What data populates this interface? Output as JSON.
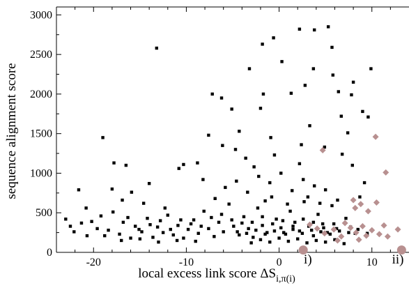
{
  "chart_data": {
    "type": "scatter",
    "xlabel_text": "local excess link score ΔS",
    "xlabel_sub": "i,π(i)",
    "ylabel": "sequence alignment score",
    "xlim": [
      -24,
      14
    ],
    "ylim": [
      0,
      3100
    ],
    "x_ticks": [
      -20,
      -10,
      0,
      10
    ],
    "x_tick_labels": [
      "-20",
      "-10",
      "0",
      "10"
    ],
    "y_ticks": [
      0,
      500,
      1000,
      1500,
      2000,
      2500,
      3000
    ],
    "y_tick_labels": [
      "0",
      "500",
      "1000",
      "1500",
      "2000",
      "2500",
      "3000"
    ],
    "grid": false,
    "colors": {
      "black_series": "#000000",
      "highlight": "#b89090"
    },
    "series": [
      {
        "marker": "square",
        "color": "#000000",
        "points": [
          [
            -13.2,
            2580
          ],
          [
            -7.2,
            2000
          ],
          [
            -6.2,
            1950
          ],
          [
            -5.1,
            1810
          ],
          [
            -3.2,
            2320
          ],
          [
            -2.0,
            1820
          ],
          [
            -1.8,
            2630
          ],
          [
            -1.7,
            2000
          ],
          [
            -0.6,
            2710
          ],
          [
            0.3,
            2410
          ],
          [
            2.2,
            2820
          ],
          [
            3.8,
            2810
          ],
          [
            5.3,
            2850
          ],
          [
            1.3,
            2010
          ],
          [
            2.8,
            2110
          ],
          [
            3.7,
            2320
          ],
          [
            6.4,
            2030
          ],
          [
            8.0,
            2150
          ],
          [
            9.9,
            2320
          ],
          [
            5.7,
            2590
          ],
          [
            6.7,
            1720
          ],
          [
            7.8,
            1990
          ],
          [
            9.0,
            1780
          ],
          [
            9.6,
            1710
          ],
          [
            5.8,
            2240
          ],
          [
            -19.0,
            1450
          ],
          [
            -17.8,
            1130
          ],
          [
            -6.1,
            1350
          ],
          [
            -4.3,
            1530
          ],
          [
            -0.9,
            1450
          ],
          [
            2.4,
            1360
          ],
          [
            3.3,
            1600
          ],
          [
            7.4,
            1510
          ],
          [
            4.9,
            1330
          ],
          [
            -7.6,
            1480
          ],
          [
            -21.6,
            790
          ],
          [
            -18.0,
            800
          ],
          [
            -16.5,
            1100
          ],
          [
            -15.9,
            760
          ],
          [
            -14.0,
            870
          ],
          [
            -10.8,
            1060
          ],
          [
            -10.3,
            1110
          ],
          [
            -8.8,
            1130
          ],
          [
            -4.7,
            1300
          ],
          [
            -0.5,
            1230
          ],
          [
            -3.6,
            1190
          ],
          [
            2.2,
            1120
          ],
          [
            -23.0,
            420
          ],
          [
            -22.1,
            260
          ],
          [
            -21.3,
            370
          ],
          [
            -20.7,
            210
          ],
          [
            -19.6,
            300
          ],
          [
            -19.2,
            460
          ],
          [
            -18.4,
            280
          ],
          [
            -17.9,
            510
          ],
          [
            -17.2,
            230
          ],
          [
            -16.8,
            380
          ],
          [
            -16.0,
            180
          ],
          [
            -15.5,
            330
          ],
          [
            -14.8,
            260
          ],
          [
            -14.2,
            430
          ],
          [
            -13.6,
            190
          ],
          [
            -13.1,
            320
          ],
          [
            -12.5,
            250
          ],
          [
            -12.0,
            470
          ],
          [
            -11.4,
            220
          ],
          [
            -10.9,
            340
          ],
          [
            -10.3,
            180
          ],
          [
            -9.8,
            290
          ],
          [
            -9.2,
            410
          ],
          [
            -8.7,
            240
          ],
          [
            -8.1,
            520
          ],
          [
            -7.6,
            300
          ],
          [
            -7.0,
            200
          ],
          [
            -6.5,
            380
          ],
          [
            -6.0,
            260
          ],
          [
            -5.4,
            610
          ],
          [
            -4.9,
            330
          ],
          [
            -4.3,
            220
          ],
          [
            -3.8,
            450
          ],
          [
            -3.3,
            300
          ],
          [
            -2.8,
            190
          ],
          [
            -2.3,
            560
          ],
          [
            -1.8,
            340
          ],
          [
            -1.3,
            250
          ],
          [
            -0.8,
            700
          ],
          [
            -0.3,
            420
          ],
          [
            0.2,
            310
          ],
          [
            0.7,
            230
          ],
          [
            1.2,
            520
          ],
          [
            1.7,
            380
          ],
          [
            2.2,
            270
          ],
          [
            2.7,
            640
          ],
          [
            3.2,
            330
          ],
          [
            3.7,
            210
          ],
          [
            4.2,
            480
          ],
          [
            4.7,
            360
          ],
          [
            5.2,
            250
          ],
          [
            5.7,
            590
          ],
          [
            6.2,
            300
          ],
          [
            6.7,
            200
          ],
          [
            7.2,
            430
          ],
          [
            7.7,
            320
          ],
          [
            8.2,
            240
          ],
          [
            -22.5,
            330
          ],
          [
            -20.2,
            390
          ],
          [
            -18.8,
            210
          ],
          [
            -16.3,
            440
          ],
          [
            -15.1,
            290
          ],
          [
            -13.9,
            350
          ],
          [
            -12.8,
            400
          ],
          [
            -11.7,
            290
          ],
          [
            -10.6,
            410
          ],
          [
            -9.5,
            360
          ],
          [
            -8.4,
            330
          ],
          [
            -7.3,
            440
          ],
          [
            -6.2,
            480
          ],
          [
            -5.1,
            410
          ],
          [
            -4.0,
            370
          ],
          [
            -2.9,
            380
          ],
          [
            -1.8,
            450
          ],
          [
            -0.7,
            360
          ],
          [
            0.4,
            400
          ],
          [
            1.5,
            330
          ],
          [
            2.6,
            420
          ],
          [
            3.7,
            380
          ],
          [
            4.8,
            310
          ],
          [
            5.9,
            360
          ],
          [
            -5.8,
            820
          ],
          [
            -4.6,
            900
          ],
          [
            -3.4,
            760
          ],
          [
            -2.2,
            960
          ],
          [
            -1.0,
            880
          ],
          [
            0.2,
            1000
          ],
          [
            1.4,
            780
          ],
          [
            2.6,
            920
          ],
          [
            3.8,
            840
          ],
          [
            5.0,
            790
          ],
          [
            -6.9,
            680
          ],
          [
            -1.5,
            650
          ],
          [
            0.9,
            610
          ],
          [
            3.1,
            700
          ],
          [
            4.4,
            620
          ],
          [
            6.3,
            660
          ],
          [
            -3.0,
            120
          ],
          [
            -2.0,
            160
          ],
          [
            -1.0,
            130
          ],
          [
            0.0,
            180
          ],
          [
            1.0,
            140
          ],
          [
            2.0,
            170
          ],
          [
            3.0,
            120
          ],
          [
            4.0,
            150
          ],
          [
            5.0,
            130
          ],
          [
            6.0,
            160
          ],
          [
            7.0,
            110
          ],
          [
            -9.0,
            140
          ],
          [
            -11.0,
            150
          ],
          [
            -13.0,
            130
          ],
          [
            -15.0,
            170
          ],
          [
            -17.0,
            150
          ],
          [
            -4.5,
            260
          ],
          [
            -3.5,
            240
          ],
          [
            -2.5,
            280
          ],
          [
            -1.5,
            230
          ],
          [
            -0.5,
            270
          ],
          [
            0.5,
            250
          ],
          [
            1.5,
            290
          ],
          [
            2.5,
            240
          ],
          [
            3.5,
            280
          ],
          [
            4.5,
            260
          ],
          [
            5.5,
            230
          ],
          [
            6.5,
            270
          ],
          [
            7.5,
            250
          ],
          [
            8.5,
            290
          ],
          [
            9.5,
            240
          ],
          [
            8.7,
            700
          ],
          [
            9.2,
            880
          ],
          [
            7.9,
            1100
          ],
          [
            6.8,
            1240
          ],
          [
            -2.7,
            1080
          ],
          [
            -8.2,
            920
          ],
          [
            -12.3,
            560
          ],
          [
            -14.6,
            620
          ],
          [
            -16.9,
            660
          ],
          [
            -20.8,
            560
          ]
        ]
      },
      {
        "marker": "diamond",
        "color": "#b89090",
        "points": [
          [
            4.7,
            1290
          ],
          [
            10.4,
            1460
          ],
          [
            11.5,
            1010
          ],
          [
            8.0,
            660
          ],
          [
            8.2,
            560
          ],
          [
            8.8,
            610
          ],
          [
            10.5,
            630
          ],
          [
            9.6,
            520
          ],
          [
            12.8,
            290
          ],
          [
            3.3,
            350
          ],
          [
            4.1,
            300
          ],
          [
            4.9,
            240
          ],
          [
            5.9,
            290
          ],
          [
            6.7,
            200
          ],
          [
            7.1,
            370
          ],
          [
            7.7,
            310
          ],
          [
            8.3,
            250
          ],
          [
            9.0,
            330
          ],
          [
            9.4,
            210
          ],
          [
            10.0,
            280
          ],
          [
            10.8,
            230
          ],
          [
            11.3,
            340
          ],
          [
            11.7,
            200
          ],
          [
            6.3,
            150
          ],
          [
            8.6,
            160
          ]
        ]
      },
      {
        "marker": "circle",
        "color": "#b89090",
        "points": [
          [
            2.6,
            30
          ],
          [
            13.2,
            30
          ]
        ]
      }
    ],
    "annotations": [
      {
        "text": "i)",
        "x": 3.1,
        "y": -90
      },
      {
        "text": "ii)",
        "x": 12.8,
        "y": -90
      }
    ]
  }
}
